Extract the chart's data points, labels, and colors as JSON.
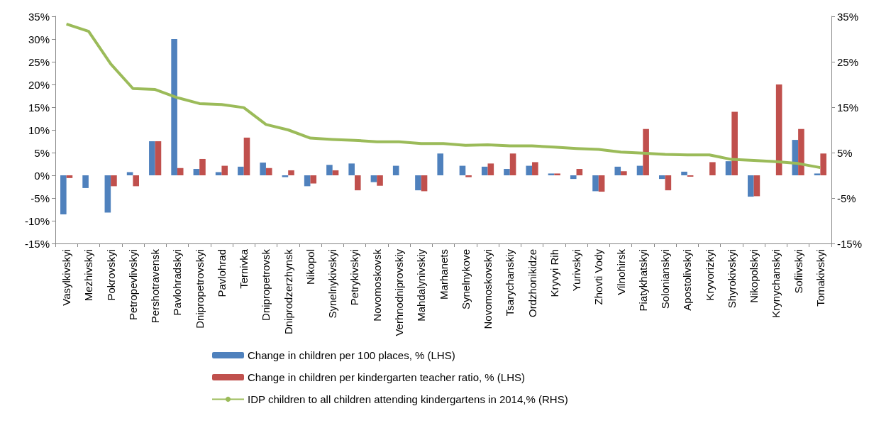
{
  "chart_data": {
    "type": "bar",
    "categories": [
      "Vasylkivskyi",
      "Mezhivskyi",
      "Pokrovskyi",
      "Petropevlivskyi",
      "Pershotravensk",
      "Pavlohradskyi",
      "Dnipropetrovskyi",
      "Pavlohrad",
      "Ternivka",
      "Dnipropetrovsk",
      "Dniprodzerzhynsk",
      "Nikopol",
      "Synelnykivskyi",
      "Petrykivskyi",
      "Novomoskovsk",
      "Verhnodniprovskiy",
      "Mahdalynivskiy",
      "Marhanets",
      "Synelnykove",
      "Novomoskovskyi",
      "Tsarychanskiy",
      "Ordzhonikidze",
      "Kryvyi Rih",
      "Yurivskyi",
      "Zhovti Vody",
      "Vilnohirsk",
      "Piatykhatskyi",
      "Solonianskyi",
      "Apostolivskyi",
      "Kryvorizkyi",
      "Shyrokivskyi",
      "Nikopolskyi",
      "Krynychanskyi",
      "Sofiivskyi",
      "Tomakivskyi"
    ],
    "series": [
      {
        "name": "Change in children per 100 places, % (LHS)",
        "color": "#4f81bd",
        "values": [
          -8.6,
          -2.8,
          -8.2,
          0.7,
          7.5,
          30,
          1.4,
          0.7,
          1.9,
          2.8,
          -0.4,
          -2.4,
          2.3,
          2.6,
          -1.5,
          2.1,
          -3.3,
          4.8,
          2.1,
          1.9,
          1.4,
          2.1,
          0.4,
          -0.8,
          -3.5,
          1.9,
          2.1,
          -0.8,
          0.8,
          0,
          3.1,
          -4.7,
          0,
          7.8,
          0.4
        ]
      },
      {
        "name": "Change in children per kindergarten teacher ratio, % (LHS)",
        "color": "#c0504d",
        "values": [
          -0.6,
          0,
          -2.4,
          -2.4,
          7.5,
          1.6,
          3.6,
          2.1,
          8.3,
          1.6,
          1.1,
          -1.8,
          1.1,
          -3.3,
          -2.3,
          0,
          -3.5,
          0,
          -0.4,
          2.6,
          4.8,
          2.9,
          0.4,
          1.4,
          -3.6,
          0.9,
          10.2,
          -3.3,
          -0.3,
          2.9,
          14,
          -4.6,
          20,
          10.2,
          4.8
        ]
      },
      {
        "name": "IDP children to all children attending kindergartens in 2014,% (RHS)",
        "type": "line",
        "axis": "y2",
        "color": "#9bbb59",
        "values": [
          33.3,
          31.7,
          24.5,
          19.1,
          18.9,
          17.1,
          15.8,
          15.6,
          14.9,
          11.2,
          10,
          8.2,
          7.9,
          7.7,
          7.4,
          7.4,
          7,
          7,
          6.6,
          6.7,
          6.5,
          6.5,
          6.2,
          5.9,
          5.7,
          5.1,
          4.9,
          4.6,
          4.5,
          4.5,
          3.5,
          3.3,
          3,
          2.6,
          1.7
        ]
      }
    ],
    "ylim": [
      -15,
      35
    ],
    "yticks": [
      {
        "value": -15,
        "label": "-15%"
      },
      {
        "value": -10,
        "label": "-10%"
      },
      {
        "value": -5,
        "label": "-5%"
      },
      {
        "value": 0,
        "label": "0%"
      },
      {
        "value": 5,
        "label": "5%"
      },
      {
        "value": 10,
        "label": "10%"
      },
      {
        "value": 15,
        "label": "15%"
      },
      {
        "value": 20,
        "label": "20%"
      },
      {
        "value": 25,
        "label": "25%"
      },
      {
        "value": 30,
        "label": "30%"
      },
      {
        "value": 35,
        "label": "35%"
      }
    ],
    "y2lim": [
      -15,
      35
    ],
    "y2ticks": [
      {
        "value": -15,
        "label": "-15%"
      },
      {
        "value": -5,
        "label": "-5%"
      },
      {
        "value": 5,
        "label": "5%"
      },
      {
        "value": 15,
        "label": "15%"
      },
      {
        "value": 25,
        "label": "25%"
      },
      {
        "value": 35,
        "label": "35%"
      }
    ],
    "marker": "none",
    "grid": false,
    "legend": "bottom"
  }
}
